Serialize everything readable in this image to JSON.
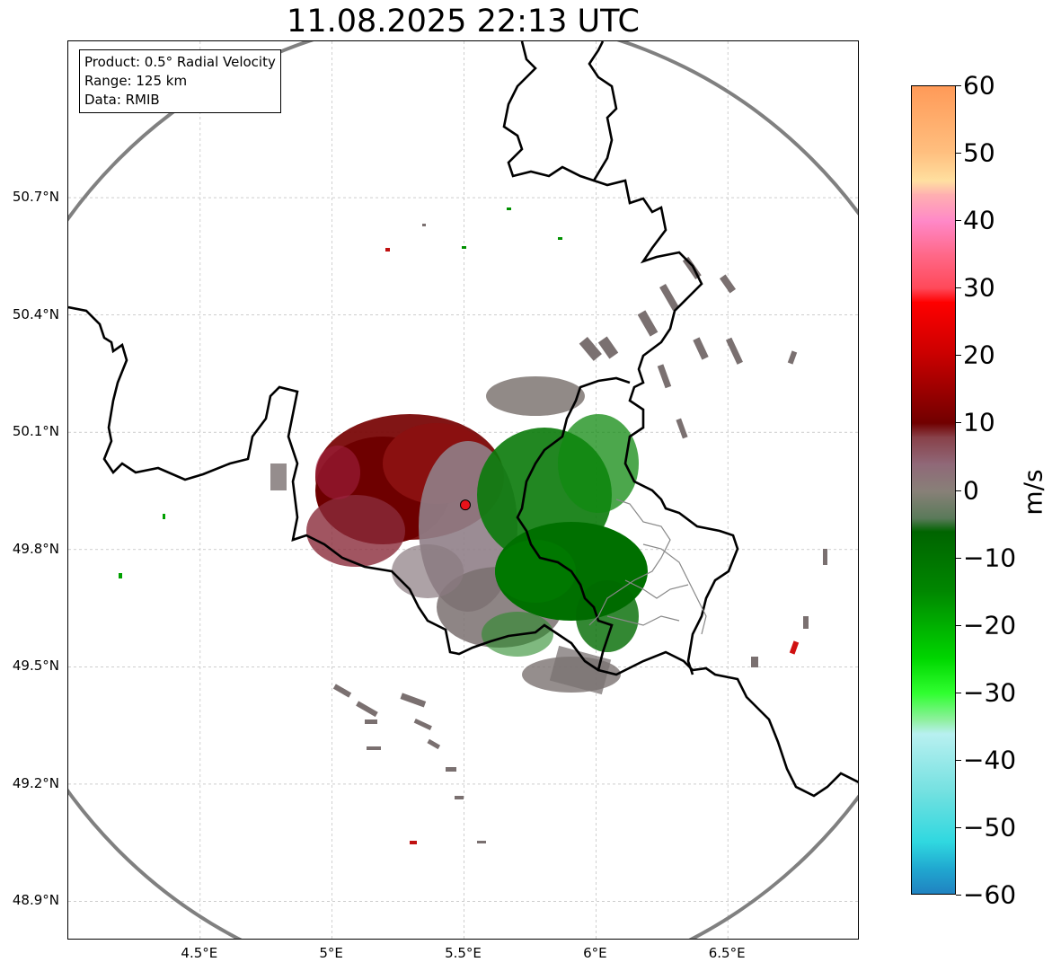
{
  "title": "11.08.2025 22:13 UTC",
  "info_box": {
    "product": "Product: 0.5° Radial Velocity",
    "range": "Range: 125 km",
    "data": "Data: RMIB"
  },
  "map": {
    "lon_range": [
      4.0,
      7.0
    ],
    "lat_range": [
      48.8,
      51.1
    ],
    "lat_ticks": [
      {
        "value": 50.7,
        "label": "50.7°N"
      },
      {
        "value": 50.4,
        "label": "50.4°N"
      },
      {
        "value": 50.1,
        "label": "50.1°N"
      },
      {
        "value": 49.8,
        "label": "49.8°N"
      },
      {
        "value": 49.5,
        "label": "49.5°N"
      },
      {
        "value": 49.2,
        "label": "49.2°N"
      },
      {
        "value": 48.9,
        "label": "48.9°N"
      }
    ],
    "lon_ticks": [
      {
        "value": 4.5,
        "label": "4.5°E"
      },
      {
        "value": 5.0,
        "label": "5°E"
      },
      {
        "value": 5.5,
        "label": "5.5°E"
      },
      {
        "value": 6.0,
        "label": "6°E"
      },
      {
        "value": 6.5,
        "label": "6.5°E"
      }
    ],
    "radar_site": {
      "lon": 5.505,
      "lat": 49.914
    },
    "range_circle_color": "#808080",
    "border_color": "#000000",
    "site_color": "#e8121a"
  },
  "colorbar": {
    "unit": "m/s",
    "min": -60,
    "max": 60,
    "ticks": [
      {
        "value": 60,
        "label": "60"
      },
      {
        "value": 50,
        "label": "50"
      },
      {
        "value": 40,
        "label": "40"
      },
      {
        "value": 30,
        "label": "30"
      },
      {
        "value": 20,
        "label": "20"
      },
      {
        "value": 10,
        "label": "10"
      },
      {
        "value": 0,
        "label": "0"
      },
      {
        "value": -10,
        "label": "−10"
      },
      {
        "value": -20,
        "label": "−20"
      },
      {
        "value": -30,
        "label": "−30"
      },
      {
        "value": -40,
        "label": "−40"
      },
      {
        "value": -50,
        "label": "−50"
      },
      {
        "value": -60,
        "label": "−60"
      }
    ],
    "stops": [
      {
        "value": 60,
        "color": "#ff9a58"
      },
      {
        "value": 50,
        "color": "#ffc080"
      },
      {
        "value": 46,
        "color": "#ffe0a0"
      },
      {
        "value": 44,
        "color": "#ffb0b0"
      },
      {
        "value": 40,
        "color": "#ff88c8"
      },
      {
        "value": 35,
        "color": "#ff6888"
      },
      {
        "value": 30,
        "color": "#ff4858"
      },
      {
        "value": 28,
        "color": "#ff0000"
      },
      {
        "value": 20,
        "color": "#c80000"
      },
      {
        "value": 10,
        "color": "#700000"
      },
      {
        "value": 8,
        "color": "#884048"
      },
      {
        "value": 4,
        "color": "#906878"
      },
      {
        "value": 0,
        "color": "#888078"
      },
      {
        "value": -4,
        "color": "#5a7a5a"
      },
      {
        "value": -6,
        "color": "#006400"
      },
      {
        "value": -15,
        "color": "#008800"
      },
      {
        "value": -25,
        "color": "#00d800"
      },
      {
        "value": -30,
        "color": "#30ff30"
      },
      {
        "value": -34,
        "color": "#90f0a0"
      },
      {
        "value": -36,
        "color": "#b8f0f0"
      },
      {
        "value": -45,
        "color": "#70e0e0"
      },
      {
        "value": -52,
        "color": "#30d8e0"
      },
      {
        "value": -56,
        "color": "#20a8d0"
      },
      {
        "value": -60,
        "color": "#2080c0"
      }
    ]
  }
}
